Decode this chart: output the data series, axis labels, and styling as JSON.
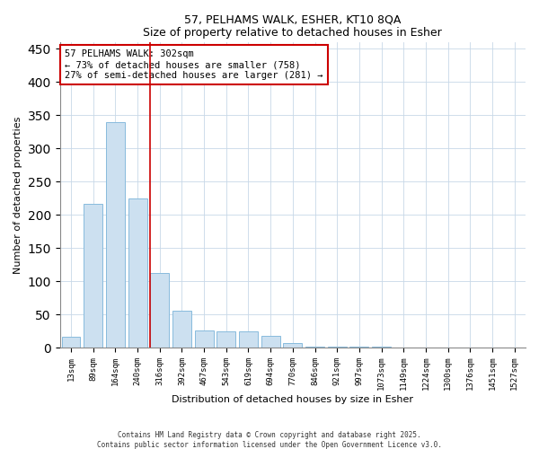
{
  "title": "57, PELHAMS WALK, ESHER, KT10 8QA",
  "subtitle": "Size of property relative to detached houses in Esher",
  "xlabel": "Distribution of detached houses by size in Esher",
  "ylabel": "Number of detached properties",
  "bar_color": "#cce0f0",
  "bar_edge_color": "#88bbdd",
  "categories": [
    "13sqm",
    "89sqm",
    "164sqm",
    "240sqm",
    "316sqm",
    "392sqm",
    "467sqm",
    "543sqm",
    "619sqm",
    "694sqm",
    "770sqm",
    "846sqm",
    "921sqm",
    "997sqm",
    "1073sqm",
    "1149sqm",
    "1224sqm",
    "1300sqm",
    "1376sqm",
    "1451sqm",
    "1527sqm"
  ],
  "values": [
    16,
    216,
    339,
    224,
    113,
    55,
    26,
    25,
    25,
    18,
    7,
    1,
    1,
    1,
    1,
    0,
    0,
    0,
    0,
    0,
    0
  ],
  "red_line_index": 4,
  "annotation_text": "57 PELHAMS WALK: 302sqm\n← 73% of detached houses are smaller (758)\n27% of semi-detached houses are larger (281) →",
  "annotation_box_color": "white",
  "annotation_box_edge_color": "#cc0000",
  "ylim": [
    0,
    460
  ],
  "yticks": [
    0,
    50,
    100,
    150,
    200,
    250,
    300,
    350,
    400,
    450
  ],
  "grid_color": "#c8d8e8",
  "bg_color": "#ffffff",
  "footnote1": "Contains HM Land Registry data © Crown copyright and database right 2025.",
  "footnote2": "Contains public sector information licensed under the Open Government Licence v3.0."
}
